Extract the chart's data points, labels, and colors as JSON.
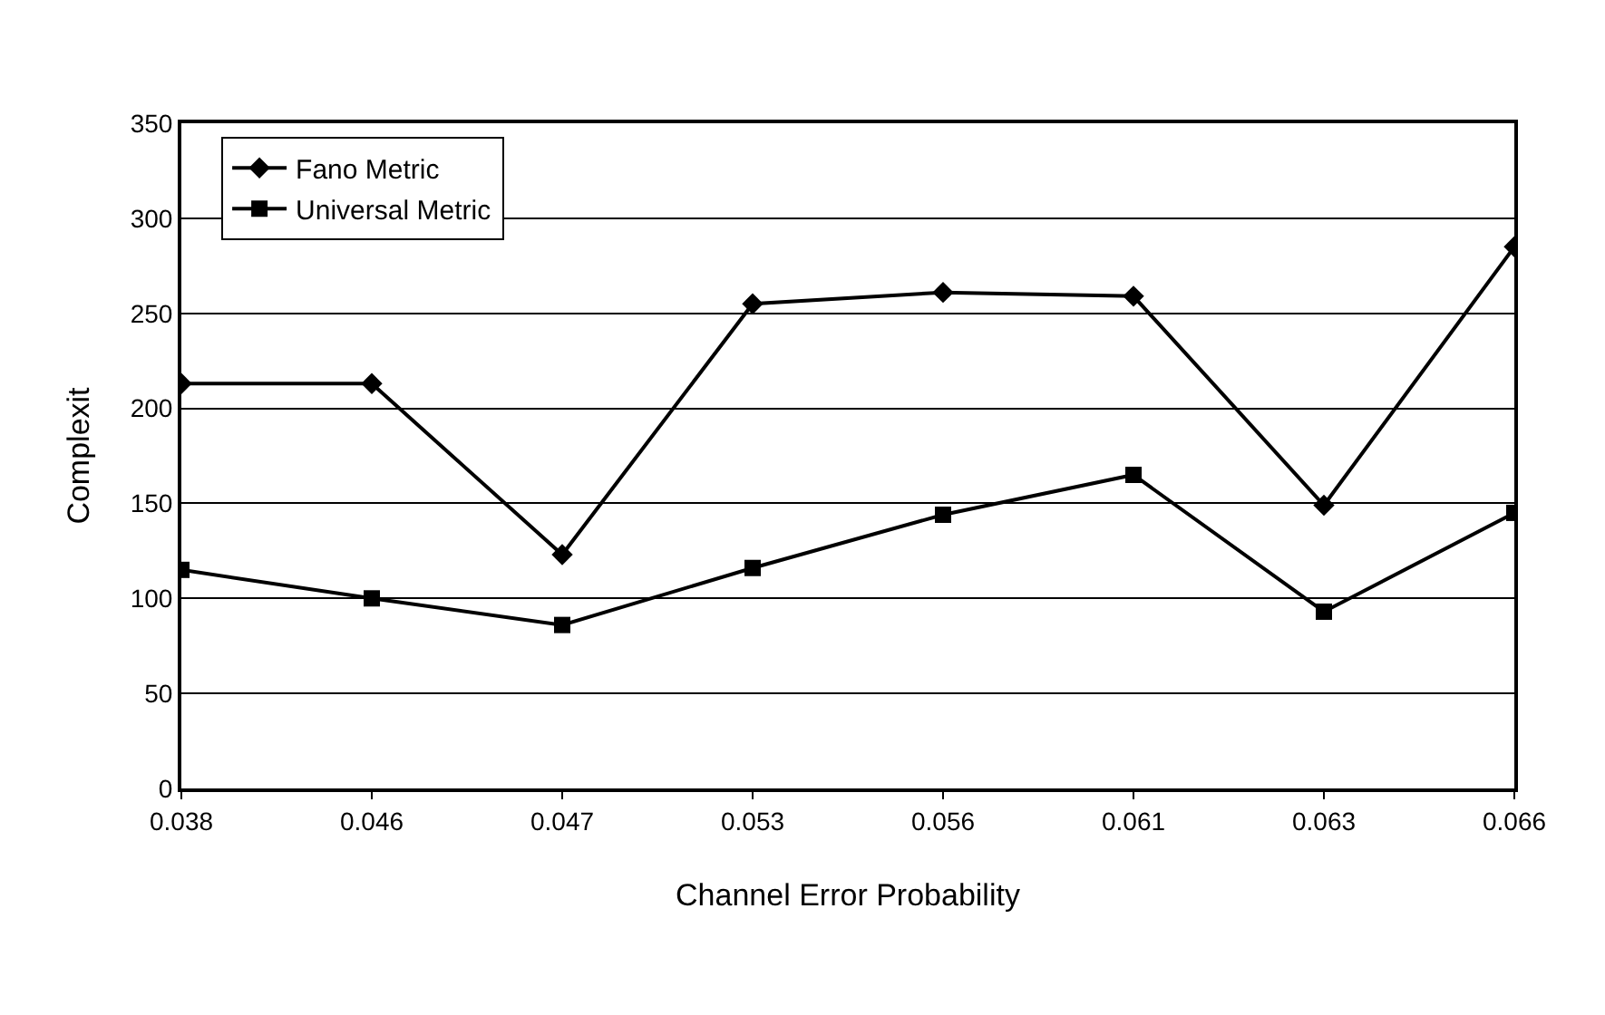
{
  "chart_data": {
    "type": "line",
    "xlabel": "Channel Error Probability",
    "ylabel": "Complexit",
    "categories": [
      "0.038",
      "0.046",
      "0.047",
      "0.053",
      "0.056",
      "0.061",
      "0.063",
      "0.066"
    ],
    "series": [
      {
        "name": "Fano Metric",
        "color": "#000000",
        "marker": "diamond",
        "values": [
          213,
          213,
          123,
          255,
          261,
          259,
          149,
          285
        ]
      },
      {
        "name": "Universal Metric",
        "color": "#000000",
        "marker": "square",
        "values": [
          115,
          100,
          86,
          116,
          144,
          165,
          93,
          145
        ]
      }
    ],
    "ylim": [
      0,
      350
    ],
    "yticks": [
      0,
      50,
      100,
      150,
      200,
      250,
      300,
      350
    ],
    "grid": "y",
    "legend": "top left",
    "line_style": "solid"
  }
}
